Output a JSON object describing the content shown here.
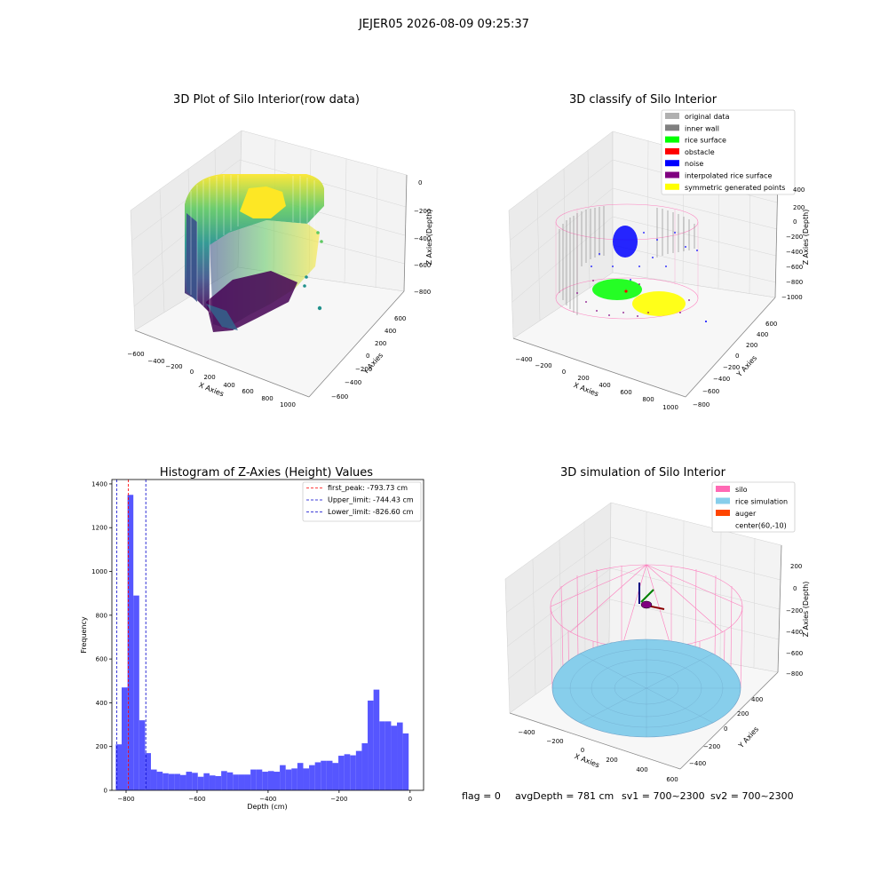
{
  "figure": {
    "suptitle": "JEJER05 2026-08-09 09:25:37",
    "status": {
      "flag": "flag = 0",
      "avg_depth": "avgDepth = 781 cm",
      "sv1": "sv1 = 700~2300",
      "sv2": "sv2 = 700~2300"
    }
  },
  "chart_data": [
    {
      "type": "scatter",
      "panel": "top-left",
      "title": "3D Plot of Silo Interior(row data)",
      "xlabel": "X Axies",
      "ylabel": "Y Axies",
      "zlabel": "Z Axies (Depth)",
      "xticks": [
        "−600",
        "−400",
        "−200",
        "0",
        "200",
        "400",
        "600",
        "800",
        "1000"
      ],
      "yticks": [
        "−600",
        "−400",
        "−200",
        "0",
        "200",
        "400",
        "600"
      ],
      "zticks": [
        "0",
        "−200",
        "−400",
        "−600",
        "−800"
      ],
      "grid": true,
      "colormap": "viridis"
    },
    {
      "type": "scatter",
      "panel": "top-right",
      "title": "3D classify of Silo Interior",
      "xlabel": "X Axies",
      "ylabel": "Y Axies",
      "zlabel": "Z Axies (Depth)",
      "xticks": [
        "−400",
        "−200",
        "0",
        "200",
        "400",
        "600",
        "800",
        "1000"
      ],
      "yticks": [
        "−800",
        "−600",
        "−400",
        "−200",
        "0",
        "200",
        "400",
        "600"
      ],
      "zticks": [
        "400",
        "200",
        "0",
        "−200",
        "−400",
        "−600",
        "−800",
        "−1000"
      ],
      "grid": true,
      "legend_position": "top-right",
      "legend": [
        {
          "label": "original data",
          "color": "#b0b0b0"
        },
        {
          "label": "inner wall",
          "color": "#808080"
        },
        {
          "label": "rice surface",
          "color": "#00ff00"
        },
        {
          "label": "obstacle",
          "color": "#ff0000"
        },
        {
          "label": "noise",
          "color": "#0000ff"
        },
        {
          "label": "interpolated rice surface",
          "color": "#800080"
        },
        {
          "label": "symmetric generated points",
          "color": "#ffff00"
        }
      ]
    },
    {
      "type": "bar",
      "panel": "bottom-left",
      "title": "Histogram of Z-Axies (Height) Values",
      "xlabel": "Depth (cm)",
      "ylabel": "Frequency",
      "xlim": [
        -840,
        38
      ],
      "ylim": [
        0,
        1420
      ],
      "xticks": [
        -800,
        -600,
        -400,
        -200,
        0
      ],
      "yticks": [
        0,
        200,
        400,
        600,
        800,
        1000,
        1200,
        1400
      ],
      "grid": false,
      "bin_width": 16.5,
      "bar_color": "#4d4dff",
      "bins_left": [
        -829,
        -812.5,
        -796,
        -779.5,
        -763,
        -746.5,
        -730,
        -713.5,
        -697,
        -680.5,
        -664,
        -647.5,
        -631,
        -614.5,
        -598,
        -581.5,
        -565,
        -548.5,
        -532,
        -515.5,
        -499,
        -482.5,
        -466,
        -449.5,
        -433,
        -416.5,
        -400,
        -383.5,
        -367,
        -350.5,
        -334,
        -317.5,
        -301,
        -284.5,
        -268,
        -251.5,
        -235,
        -218.5,
        -202,
        -185.5,
        -169,
        -152.5,
        -136,
        -119.5,
        -103,
        -86.5,
        -70,
        -53.5,
        -37,
        -20.5,
        -4
      ],
      "counts": [
        210,
        470,
        1350,
        890,
        320,
        170,
        95,
        85,
        78,
        75,
        75,
        70,
        85,
        80,
        62,
        78,
        68,
        65,
        88,
        82,
        72,
        72,
        72,
        95,
        95,
        85,
        88,
        85,
        115,
        95,
        100,
        125,
        100,
        115,
        128,
        135,
        135,
        125,
        158,
        165,
        160,
        180,
        215,
        410,
        460,
        315,
        315,
        295,
        310,
        260,
        0
      ],
      "vlines": [
        {
          "label": "first_peak: -793.73 cm",
          "x": -793.73,
          "color": "#ff0000"
        },
        {
          "label": "Upper_limit: -744.43 cm",
          "x": -744.43,
          "color": "#0000cc"
        },
        {
          "label": "Lower_limit: -826.60 cm",
          "x": -826.6,
          "color": "#0000cc"
        }
      ],
      "legend_position": "top-right"
    },
    {
      "type": "scatter",
      "panel": "bottom-right",
      "title": "3D simulation of Silo Interior",
      "xlabel": "X Axies",
      "ylabel": "Y Axies",
      "zlabel": "Z Axies (Depth)",
      "xticks": [
        "−400",
        "−200",
        "0",
        "200",
        "400",
        "600"
      ],
      "yticks": [
        "−400",
        "−200",
        "0",
        "200",
        "400"
      ],
      "zticks": [
        "200",
        "0",
        "−200",
        "−400",
        "−600",
        "−800"
      ],
      "grid": true,
      "legend_position": "top-right",
      "legend": [
        {
          "label": "silo",
          "color": "#ff69b4"
        },
        {
          "label": "rice simulation",
          "color": "#87ceeb"
        },
        {
          "label": "auger",
          "color": "#ff4500"
        },
        {
          "label": "center(60,-10)",
          "color": ""
        }
      ]
    }
  ]
}
